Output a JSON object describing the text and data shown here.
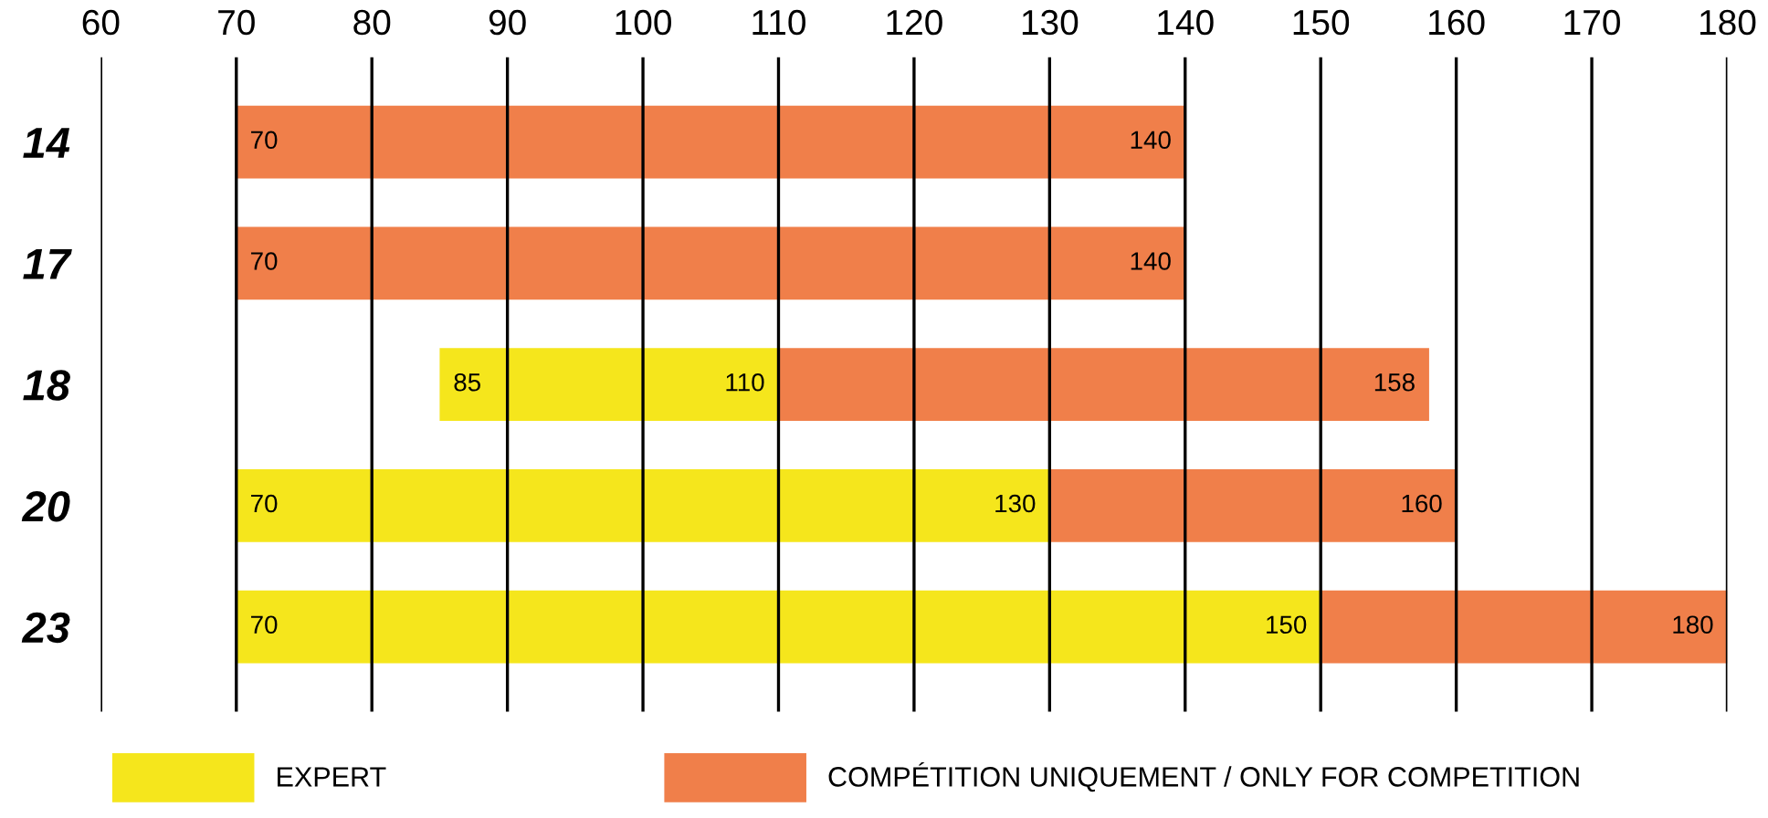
{
  "chart_data": {
    "type": "bar",
    "orientation": "horizontal",
    "categories": [
      "14",
      "17",
      "18",
      "20",
      "23"
    ],
    "series": [
      {
        "name": "EXPERT",
        "color": "#f5e61c",
        "base": [
          null,
          null,
          85,
          70,
          70
        ],
        "values": [
          null,
          null,
          25,
          60,
          80
        ]
      },
      {
        "name": "COMPÉTITION UNIQUEMENT / ONLY FOR COMPETITION",
        "color": "#f07f4a",
        "base": [
          70,
          70,
          110,
          130,
          150
        ],
        "values": [
          70,
          70,
          48,
          30,
          30
        ]
      }
    ],
    "xlim": [
      60,
      180
    ],
    "xticks": [
      60,
      70,
      80,
      90,
      100,
      110,
      120,
      130,
      140,
      150,
      160,
      170,
      180
    ],
    "grid": "x",
    "legend": "bottom",
    "annotations": [
      {
        "text": "70",
        "x": 70,
        "y": "14"
      },
      {
        "text": "140",
        "x": 140,
        "y": "14"
      },
      {
        "text": "70",
        "x": 70,
        "y": "17"
      },
      {
        "text": "140",
        "x": 140,
        "y": "17"
      },
      {
        "text": "85",
        "x": 85,
        "y": "18"
      },
      {
        "text": "110",
        "x": 110,
        "y": "18"
      },
      {
        "text": "158",
        "x": 158,
        "y": "18"
      },
      {
        "text": "70",
        "x": 70,
        "y": "20"
      },
      {
        "text": "130",
        "x": 130,
        "y": "20"
      },
      {
        "text": "160",
        "x": 160,
        "y": "20"
      },
      {
        "text": "70",
        "x": 70,
        "y": "23"
      },
      {
        "text": "150",
        "x": 150,
        "y": "23"
      },
      {
        "text": "180",
        "x": 180,
        "y": "23"
      }
    ]
  }
}
